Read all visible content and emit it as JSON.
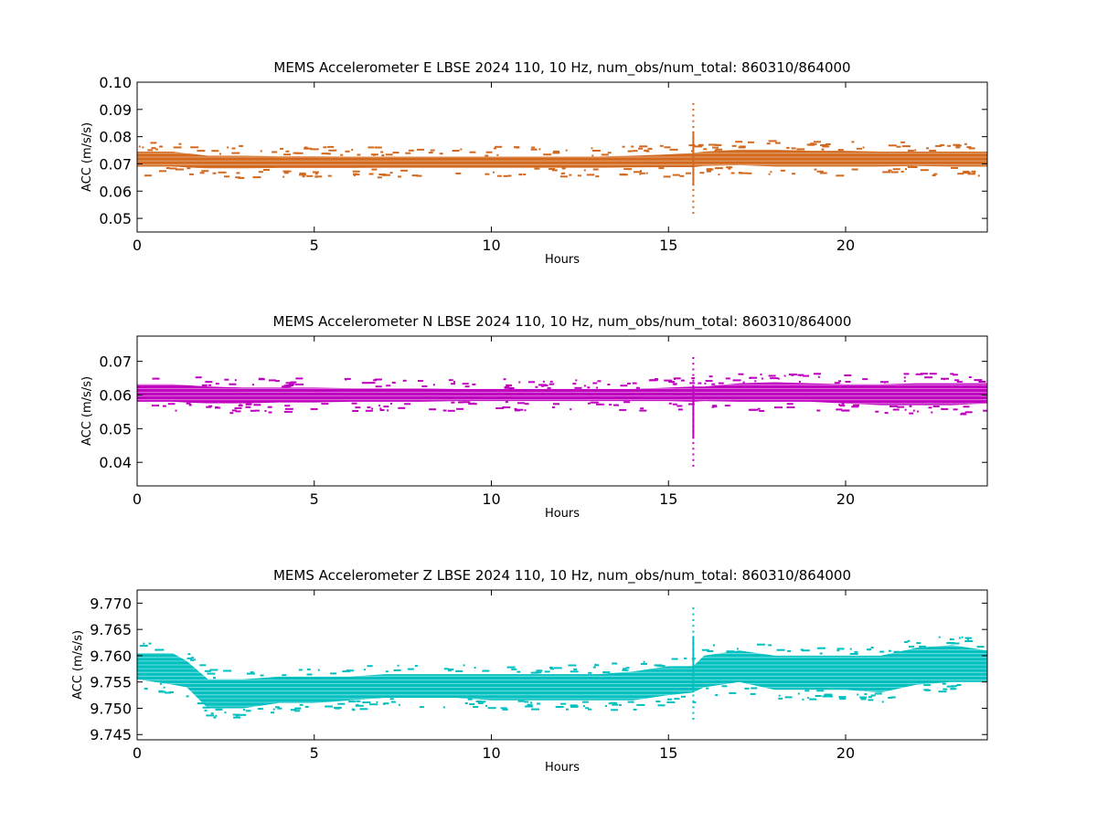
{
  "chart_data": [
    {
      "type": "scatter",
      "title": "MEMS Accelerometer E LBSE 2024 110, 10 Hz, num_obs/num_total: 860310/864000",
      "xlabel": "Hours",
      "ylabel": "ACC (m/s/s)",
      "xlim": [
        0,
        24
      ],
      "ylim": [
        0.045,
        0.1
      ],
      "xticks": [
        0,
        5,
        10,
        15,
        20
      ],
      "yticks": [
        "0.05",
        "0.06",
        "0.07",
        "0.08",
        "0.09",
        "0.10"
      ],
      "color": "#d2691e",
      "grid": false,
      "band": {
        "x": [
          0,
          1,
          2,
          3,
          4,
          5,
          6,
          7,
          8,
          9,
          10,
          11,
          12,
          13,
          14,
          15,
          15.7,
          16,
          17,
          18,
          19,
          20,
          21,
          22,
          23,
          24
        ],
        "lower": [
          0.069,
          0.069,
          0.0683,
          0.0683,
          0.0685,
          0.0685,
          0.0685,
          0.0686,
          0.0686,
          0.0686,
          0.0686,
          0.0686,
          0.0686,
          0.0686,
          0.0687,
          0.0688,
          0.0688,
          0.0692,
          0.0695,
          0.069,
          0.069,
          0.069,
          0.069,
          0.0692,
          0.069,
          0.069
        ],
        "upper": [
          0.0745,
          0.0745,
          0.073,
          0.073,
          0.0728,
          0.0728,
          0.0727,
          0.0727,
          0.0727,
          0.0727,
          0.0727,
          0.0727,
          0.0727,
          0.0727,
          0.073,
          0.0735,
          0.074,
          0.0745,
          0.0752,
          0.0752,
          0.0748,
          0.0748,
          0.0745,
          0.0745,
          0.0745,
          0.0745
        ]
      },
      "spike": {
        "x": 15.7,
        "min": 0.052,
        "max": 0.092
      }
    },
    {
      "type": "scatter",
      "title": "MEMS Accelerometer N LBSE 2024 110, 10 Hz, num_obs/num_total: 860310/864000",
      "xlabel": "Hours",
      "ylabel": "ACC (m/s/s)",
      "xlim": [
        0,
        24
      ],
      "ylim": [
        0.033,
        0.0775
      ],
      "xticks": [
        0,
        5,
        10,
        15,
        20
      ],
      "yticks": [
        "0.04",
        "0.05",
        "0.06",
        "0.07"
      ],
      "color": "#bf00bf",
      "grid": false,
      "band": {
        "x": [
          0,
          1,
          2,
          3,
          4,
          5,
          6,
          7,
          8,
          9,
          10,
          11,
          12,
          13,
          14,
          15,
          15.7,
          16,
          17,
          18,
          19,
          20,
          21,
          22,
          23,
          24
        ],
        "lower": [
          0.058,
          0.058,
          0.0575,
          0.0575,
          0.0578,
          0.0578,
          0.058,
          0.058,
          0.058,
          0.0582,
          0.0582,
          0.0582,
          0.0582,
          0.0582,
          0.0582,
          0.0582,
          0.058,
          0.0582,
          0.058,
          0.058,
          0.058,
          0.0575,
          0.057,
          0.057,
          0.057,
          0.0575
        ],
        "upper": [
          0.0632,
          0.0632,
          0.0625,
          0.0622,
          0.0622,
          0.0622,
          0.062,
          0.062,
          0.062,
          0.0618,
          0.0618,
          0.0618,
          0.0618,
          0.0618,
          0.0618,
          0.0622,
          0.0625,
          0.0625,
          0.0635,
          0.0638,
          0.0635,
          0.0632,
          0.0632,
          0.0635,
          0.0635,
          0.0635
        ]
      },
      "spike": {
        "x": 15.7,
        "min": 0.039,
        "max": 0.071
      }
    },
    {
      "type": "scatter",
      "title": "MEMS Accelerometer Z LBSE 2024 110, 10 Hz, num_obs/num_total: 860310/864000",
      "xlabel": "Hours",
      "ylabel": "ACC (m/s/s)",
      "xlim": [
        0,
        24
      ],
      "ylim": [
        9.744,
        9.7725
      ],
      "xticks": [
        0,
        5,
        10,
        15,
        20
      ],
      "yticks": [
        "9.745",
        "9.750",
        "9.755",
        "9.760",
        "9.765",
        "9.770"
      ],
      "color": "#00bfbf",
      "grid": false,
      "band": {
        "x": [
          0,
          1,
          1.4,
          2,
          3,
          4,
          5,
          6,
          7,
          8,
          9,
          10,
          11,
          12,
          13,
          14,
          15,
          15.7,
          16,
          17,
          18,
          19,
          20,
          21,
          22,
          23,
          24
        ],
        "lower": [
          9.7555,
          9.7545,
          9.754,
          9.75,
          9.75,
          9.751,
          9.751,
          9.7515,
          9.752,
          9.752,
          9.752,
          9.7515,
          9.7515,
          9.7515,
          9.7515,
          9.7515,
          9.7525,
          9.753,
          9.754,
          9.755,
          9.7535,
          9.7535,
          9.7535,
          9.753,
          9.7545,
          9.755,
          9.755
        ],
        "upper": [
          9.7605,
          9.7605,
          9.759,
          9.7555,
          9.7555,
          9.756,
          9.756,
          9.756,
          9.7565,
          9.7565,
          9.7565,
          9.7565,
          9.7565,
          9.7565,
          9.7565,
          9.757,
          9.758,
          9.758,
          9.76,
          9.761,
          9.76,
          9.76,
          9.76,
          9.76,
          9.7615,
          9.762,
          9.761
        ]
      },
      "spike": {
        "x": 15.7,
        "min": 9.748,
        "max": 9.769
      }
    }
  ]
}
